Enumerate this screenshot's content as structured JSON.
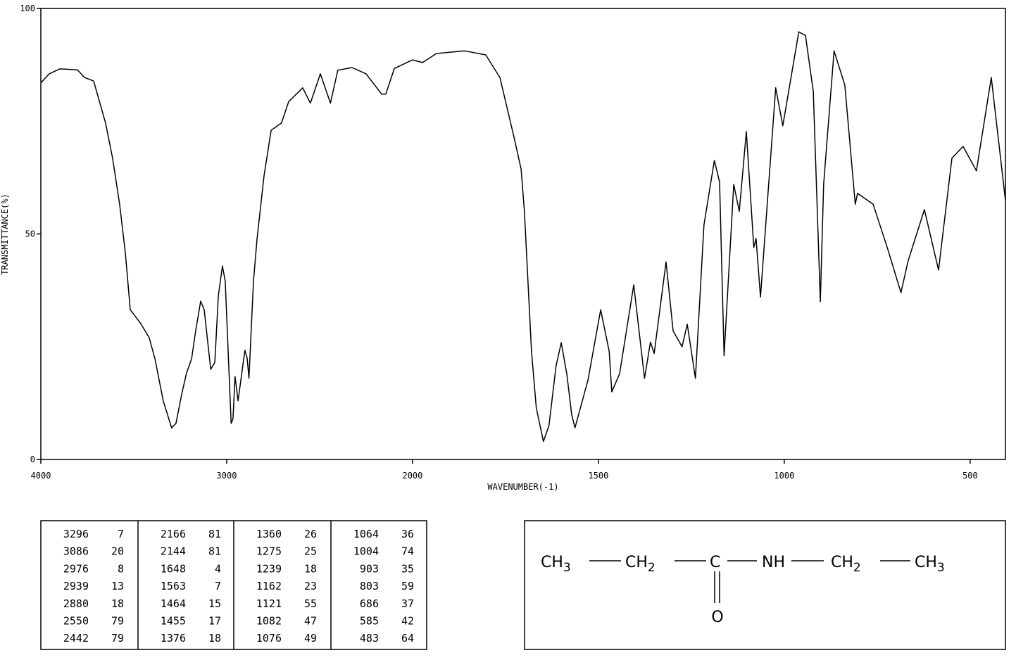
{
  "chart_data": {
    "type": "line",
    "x_label": "WAVENUMBER(-1)",
    "y_label": "TRANSMITTANCE(%)",
    "color": "#000000",
    "x": [
      4000,
      3955,
      3898,
      3803,
      3765,
      3716,
      3689,
      3652,
      3614,
      3576,
      3545,
      3519,
      3462,
      3417,
      3386,
      3341,
      3296,
      3273,
      3242,
      3216,
      3189,
      3167,
      3140,
      3121,
      3086,
      3064,
      3045,
      3023,
      3008,
      2976,
      2966,
      2955,
      2939,
      2902,
      2890,
      2880,
      2856,
      2837,
      2799,
      2761,
      2705,
      2667,
      2591,
      2550,
      2496,
      2442,
      2402,
      2326,
      2250,
      2166,
      2144,
      2098,
      2000,
      1973,
      1936,
      1860,
      1803,
      1765,
      1727,
      1708,
      1699,
      1680,
      1667,
      1648,
      1633,
      1614,
      1600,
      1585,
      1572,
      1563,
      1528,
      1494,
      1471,
      1464,
      1443,
      1405,
      1376,
      1360,
      1350,
      1318,
      1299,
      1275,
      1261,
      1239,
      1216,
      1188,
      1174,
      1162,
      1136,
      1121,
      1102,
      1082,
      1076,
      1064,
      1023,
      1004,
      961,
      943,
      922,
      903,
      894,
      866,
      837,
      809,
      803,
      761,
      723,
      686,
      667,
      623,
      585,
      549,
      519,
      483,
      443,
      405
    ],
    "values": [
      83.5,
      85.5,
      86.6,
      86.4,
      84.7,
      83.9,
      80,
      74.6,
      66.8,
      56.6,
      45.7,
      33.2,
      30.1,
      27,
      22.3,
      12.9,
      7,
      8,
      14.5,
      19.2,
      22.3,
      28.5,
      35.1,
      33.2,
      20,
      21.5,
      36.3,
      42.9,
      39.5,
      8,
      9,
      18.4,
      13,
      24.2,
      22.5,
      18,
      39.5,
      48.8,
      62.9,
      73,
      74.6,
      79.3,
      82.4,
      79,
      85.5,
      79,
      86.3,
      86.9,
      85.5,
      81,
      81,
      86.7,
      88.6,
      88,
      90,
      90.6,
      89.7,
      84.7,
      71.4,
      64.4,
      55,
      23.9,
      11.4,
      4,
      7.5,
      20.7,
      25.9,
      19,
      10,
      7,
      17.6,
      33.2,
      24,
      15,
      19,
      38.7,
      18,
      26,
      23.5,
      43.8,
      28.5,
      25,
      30,
      18,
      52,
      66.3,
      61.5,
      23,
      61,
      55,
      72.7,
      47,
      49,
      36,
      82.4,
      74,
      94.8,
      94,
      81.6,
      35,
      61,
      90.6,
      83,
      56.6,
      59,
      56.6,
      47,
      37,
      44,
      55.4,
      42,
      66.8,
      69.4,
      64,
      84.7,
      57.4
    ],
    "xlim": [
      4000,
      405
    ],
    "ylim": [
      0,
      100
    ],
    "xticks": [
      4000,
      3000,
      2000,
      1500,
      1000,
      500
    ],
    "yticks": [
      0,
      50,
      100
    ]
  },
  "peak_table": {
    "rows": [
      [
        3296,
        7,
        2166,
        81,
        1360,
        26,
        1064,
        36
      ],
      [
        3086,
        20,
        2144,
        81,
        1275,
        25,
        1004,
        74
      ],
      [
        2976,
        8,
        1648,
        4,
        1239,
        18,
        903,
        35
      ],
      [
        2939,
        13,
        1563,
        7,
        1162,
        23,
        803,
        59
      ],
      [
        2880,
        18,
        1464,
        15,
        1121,
        55,
        686,
        37
      ],
      [
        2550,
        79,
        1455,
        17,
        1082,
        47,
        585,
        42
      ],
      [
        2442,
        79,
        1376,
        18,
        1076,
        49,
        483,
        64
      ]
    ]
  },
  "structure": {
    "groups": [
      {
        "text": "CH",
        "sub": "3"
      },
      {
        "text": "CH",
        "sub": "2"
      },
      {
        "text": "C"
      },
      {
        "text": "NH"
      },
      {
        "text": "CH",
        "sub": "2"
      },
      {
        "text": "CH",
        "sub": "3"
      }
    ],
    "oxygen": "O"
  }
}
